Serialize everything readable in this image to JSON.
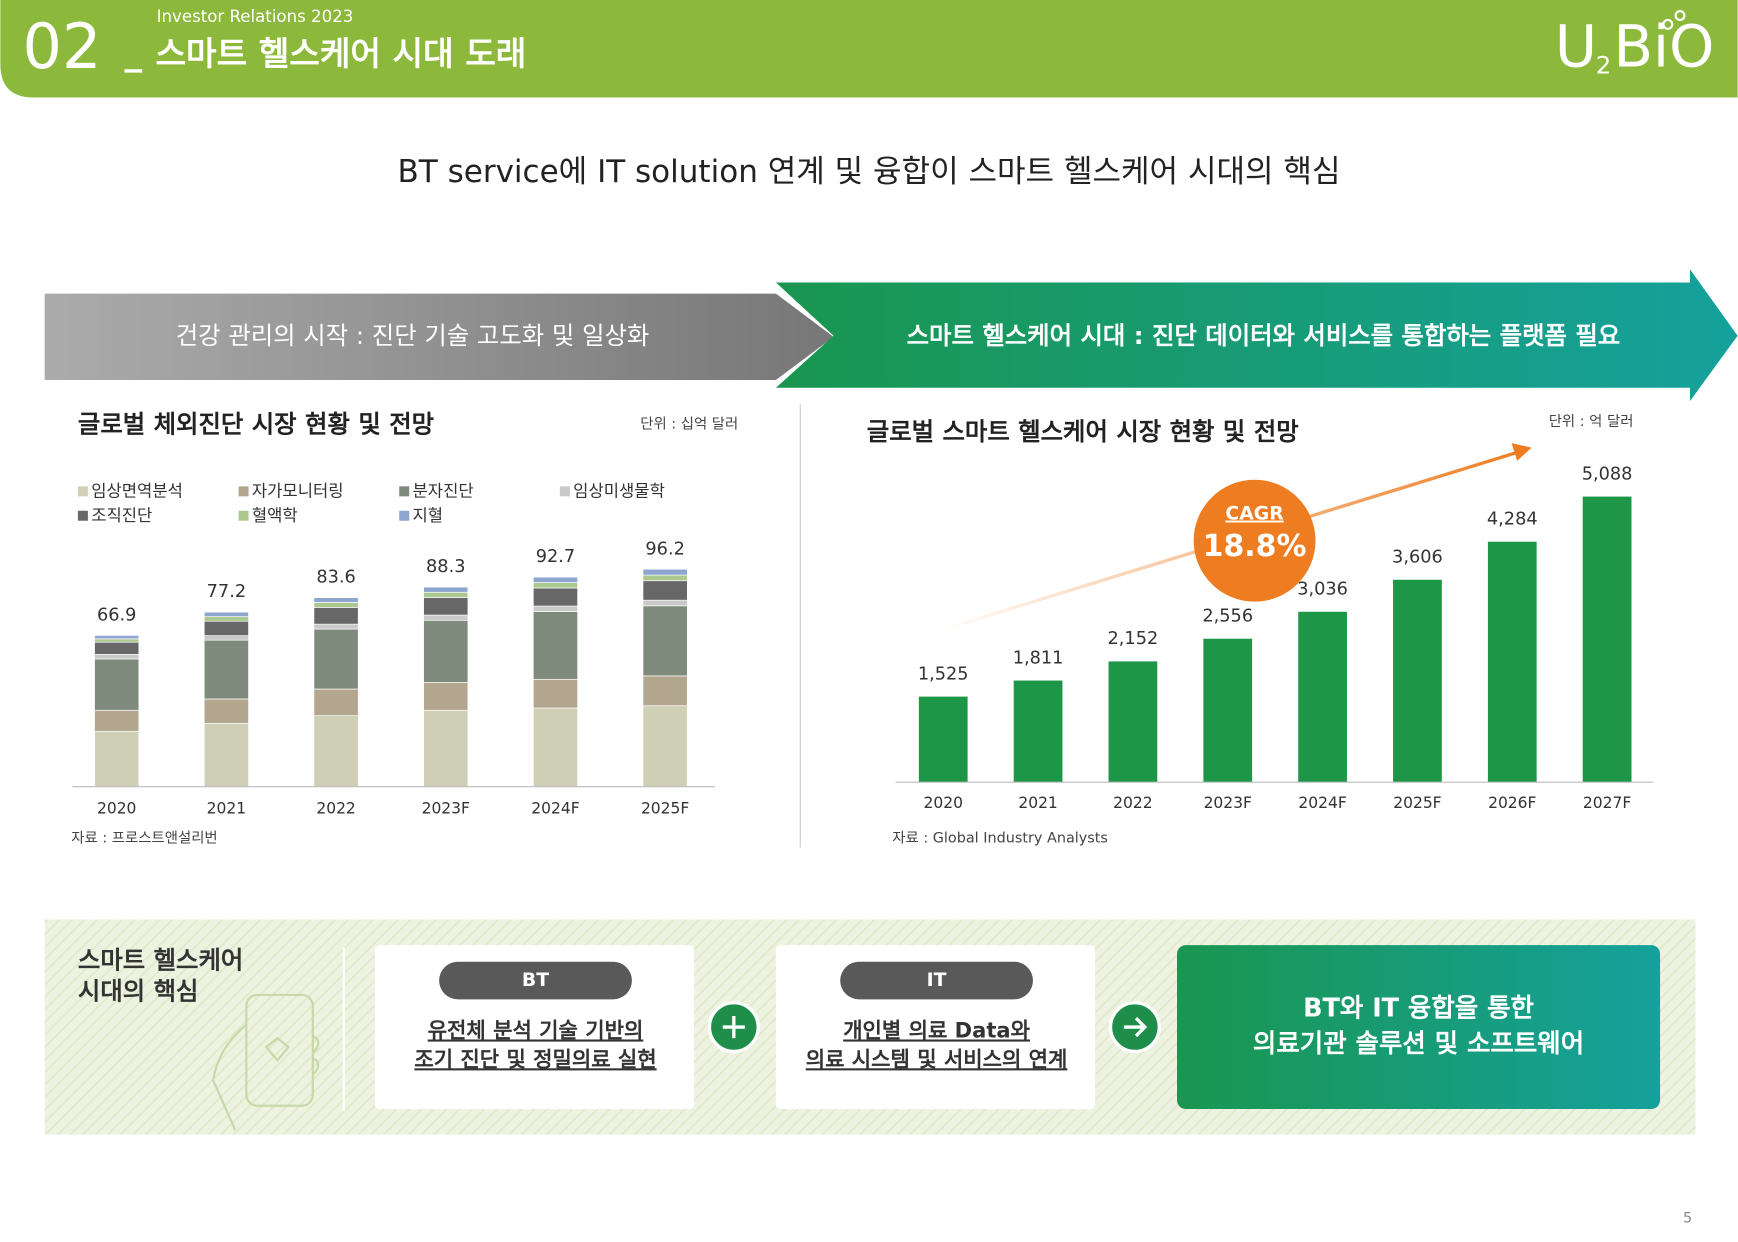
{
  "header": {
    "number": "02",
    "subtitle": "Investor Relations 2023",
    "title": "스마트 헬스케어 시대 도래",
    "logo_main": "U",
    "logo_sub": "2",
    "logo_rest": "BiO"
  },
  "headline": "BT service에 IT solution 연계 및 융합이 스마트 헬스케어 시대의 핵심",
  "banner": {
    "left": "건강 관리의 시작 : 진단 기술 고도화 및 일상화",
    "right": "스마트 헬스케어 시대 : 진단 데이터와 서비스를 통합하는 플랫폼 필요"
  },
  "chart_data": [
    {
      "type": "stacked_bar",
      "title": "글로벌 체외진단 시장 현황 및 전망",
      "unit": "단위 : 십억 달러",
      "source": "자료 : 프로스트앤설리번",
      "categories": [
        "2020",
        "2021",
        "2022",
        "2023F",
        "2024F",
        "2025F"
      ],
      "ylim": [
        0,
        100
      ],
      "totals": [
        66.9,
        77.2,
        83.6,
        88.3,
        92.7,
        96.2
      ],
      "series": [
        {
          "name": "임상면역분석",
          "color": "#cfcfb6",
          "values": [
            24.5,
            28,
            31.4,
            33.8,
            34.8,
            35.8
          ]
        },
        {
          "name": "자가모니터링",
          "color": "#b3a68f",
          "values": [
            9.3,
            10.8,
            11.8,
            12.3,
            12.7,
            13.2
          ]
        },
        {
          "name": "분자진단",
          "color": "#7e8a7b",
          "values": [
            22.7,
            26,
            26.5,
            27.5,
            30,
            31
          ]
        },
        {
          "name": "임상미생물학",
          "color": "#c9c9c9",
          "values": [
            2,
            2,
            2.2,
            2.3,
            2.4,
            2.5
          ]
        },
        {
          "name": "조직진단",
          "color": "#676767",
          "values": [
            5.4,
            6.4,
            7.4,
            7.8,
            8,
            8.6
          ]
        },
        {
          "name": "혈액학",
          "color": "#abc98f",
          "values": [
            1.5,
            2,
            2.2,
            2.3,
            2.4,
            2.5
          ]
        },
        {
          "name": "지혈",
          "color": "#8ea5cf",
          "values": [
            1.5,
            2,
            2.1,
            2.3,
            2.4,
            2.6
          ]
        }
      ]
    },
    {
      "type": "bar",
      "title": "글로벌 스마트 헬스케어 시장 현황 및 전망",
      "unit": "단위 : 억 달러",
      "source": "자료 : Global Industry Analysts",
      "categories": [
        "2020",
        "2021",
        "2022",
        "2023F",
        "2024F",
        "2025F",
        "2026F",
        "2027F"
      ],
      "values": [
        1525,
        1811,
        2152,
        2556,
        3036,
        3606,
        4284,
        5088
      ],
      "value_labels": [
        "1,525",
        "1,811",
        "2,152",
        "2,556",
        "3,036",
        "3,606",
        "4,284",
        "5,088"
      ],
      "color": "#1e9648",
      "ylim": [
        0,
        6000
      ],
      "annotation": {
        "label": "CAGR",
        "value": "18.8%",
        "color": "#ee7d22"
      }
    }
  ],
  "core": {
    "label": [
      "스마트 헬스케어",
      "시대의 핵심"
    ],
    "boxes": [
      {
        "tag": "BT",
        "lines": [
          "유전체 분석 기술 기반의",
          "조기 진단 및 정밀의료 실현"
        ]
      },
      {
        "tag": "IT",
        "lines": [
          "개인별 의료 Data와",
          "의료 시스템 및 서비스의 연계"
        ]
      }
    ],
    "result": [
      "BT와 IT 융합을 통한",
      "의료기관 솔루션 및 소프트웨어"
    ]
  },
  "page_number": "5"
}
